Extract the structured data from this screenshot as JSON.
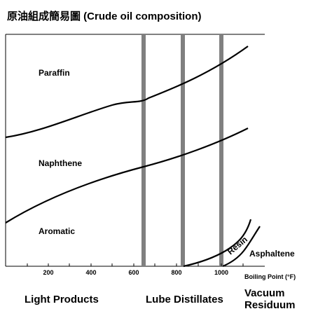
{
  "title": "原油組成簡易圖 (Crude oil composition)",
  "components": {
    "paraffin": "Paraffin",
    "naphthene": "Naphthene",
    "aromatic": "Aromatic",
    "resin": "Resin",
    "asphaltene": "Asphaltene"
  },
  "axis": {
    "x_label": "Boiling Point (°F)",
    "ticks": [
      "200",
      "400",
      "600",
      "800",
      "1000"
    ]
  },
  "regions": {
    "light": "Light Products",
    "lube": "Lube Distillates",
    "vacuum_line1": "Vacuum",
    "vacuum_line2": "Residuum"
  },
  "colors": {
    "divider": "#808080",
    "line": "#000000"
  }
}
